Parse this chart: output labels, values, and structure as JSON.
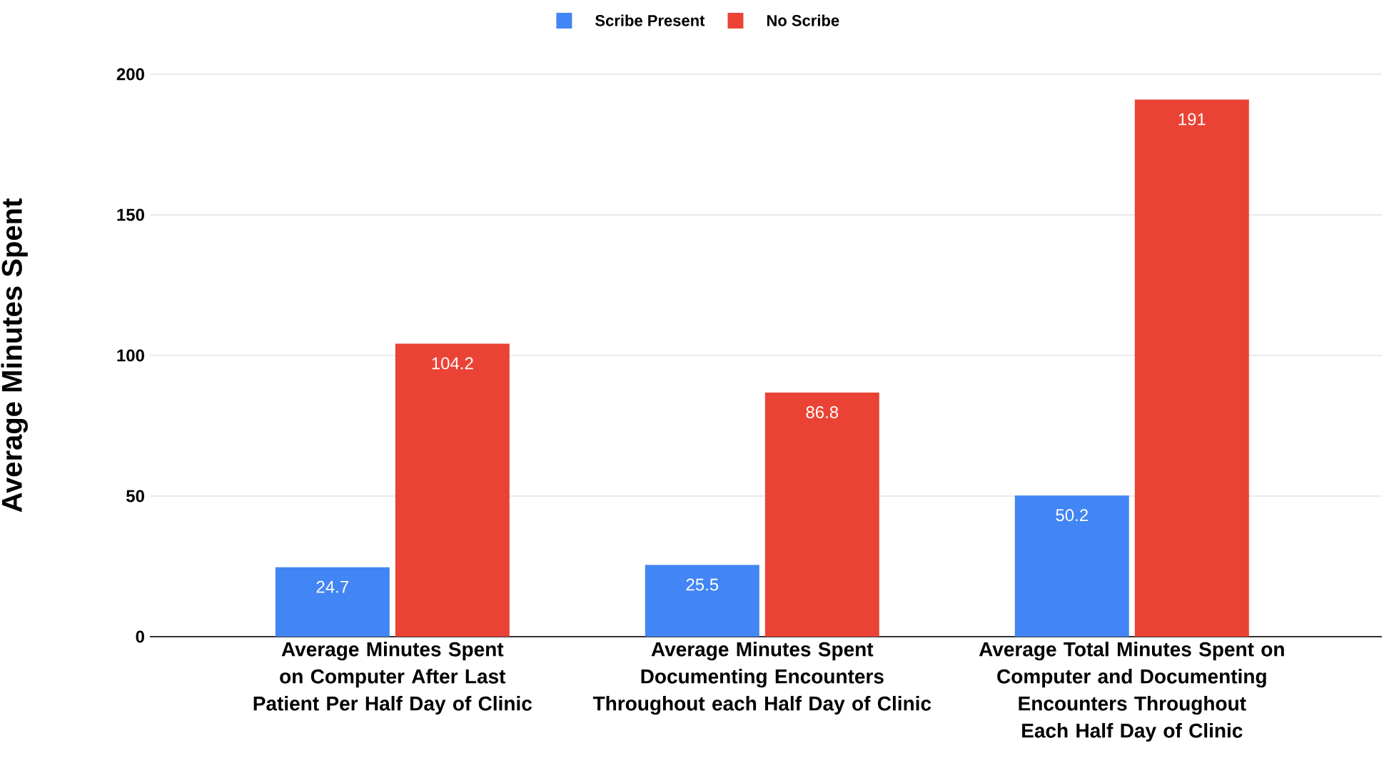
{
  "chart_data": {
    "type": "bar",
    "categories": [
      "Average Minutes Spent on Computer After Last Patient Per Half Day of Clinic",
      "Average Minutes Spent Documenting Encounters Throughout each Half Day of Clinic",
      "Average Total Minutes Spent on Computer and Documenting Encounters Throughout Each Half Day of Clinic"
    ],
    "series": [
      {
        "name": "Scribe Present",
        "color": "#4285f4",
        "values": [
          24.7,
          25.5,
          50.2
        ]
      },
      {
        "name": "No Scribe",
        "color": "#ea4335",
        "values": [
          104.2,
          86.8,
          191
        ]
      }
    ],
    "ylabel": "Average Minutes Spent",
    "ylim": [
      0,
      200
    ],
    "yticks": [
      0,
      50,
      100,
      150,
      200
    ],
    "grid": "y",
    "legend": "top",
    "data_labels": true
  }
}
